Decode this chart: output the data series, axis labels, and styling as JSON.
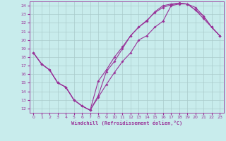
{
  "xlabel": "Windchill (Refroidissement éolien,°C)",
  "bg_color": "#c8ecec",
  "line_color": "#993399",
  "grid_color": "#aacccc",
  "xlim": [
    -0.5,
    23.5
  ],
  "ylim": [
    11.5,
    24.5
  ],
  "yticks": [
    12,
    13,
    14,
    15,
    16,
    17,
    18,
    19,
    20,
    21,
    22,
    23,
    24
  ],
  "xticks": [
    0,
    1,
    2,
    3,
    4,
    5,
    6,
    7,
    8,
    9,
    10,
    11,
    12,
    13,
    14,
    15,
    16,
    17,
    18,
    19,
    20,
    21,
    22,
    23
  ],
  "curve1_x": [
    0,
    1,
    2,
    3,
    4,
    5,
    6,
    7,
    8,
    9,
    10,
    11,
    12,
    13,
    14,
    15,
    16,
    17,
    18,
    19,
    20,
    21,
    22,
    23
  ],
  "curve1_y": [
    18.5,
    17.2,
    16.5,
    15.0,
    14.5,
    13.0,
    12.3,
    11.8,
    13.3,
    14.8,
    16.2,
    17.5,
    18.5,
    20.0,
    20.5,
    21.5,
    22.2,
    24.0,
    24.2,
    24.2,
    23.8,
    22.8,
    21.5,
    20.5
  ],
  "curve2_x": [
    0,
    1,
    2,
    3,
    4,
    5,
    6,
    7,
    8,
    9,
    10,
    11,
    12,
    13,
    14,
    15,
    16,
    17,
    18,
    19,
    20,
    21,
    22,
    23
  ],
  "curve2_y": [
    18.5,
    17.2,
    16.5,
    15.0,
    14.5,
    13.0,
    12.3,
    11.8,
    15.2,
    16.5,
    18.0,
    19.2,
    20.5,
    21.5,
    22.2,
    23.3,
    24.0,
    24.2,
    24.3,
    24.2,
    23.5,
    22.5,
    21.5,
    20.5
  ],
  "curve3_x": [
    0,
    1,
    2,
    3,
    4,
    5,
    6,
    7,
    8,
    9,
    10,
    11,
    12,
    13,
    14,
    15,
    16,
    17,
    18,
    19,
    20,
    21,
    22,
    23
  ],
  "curve3_y": [
    18.5,
    17.2,
    16.5,
    15.0,
    14.5,
    13.0,
    12.3,
    11.8,
    13.5,
    16.3,
    17.5,
    19.0,
    20.5,
    21.5,
    22.3,
    23.2,
    23.8,
    24.1,
    24.3,
    24.2,
    23.5,
    22.8,
    21.5,
    20.5
  ]
}
